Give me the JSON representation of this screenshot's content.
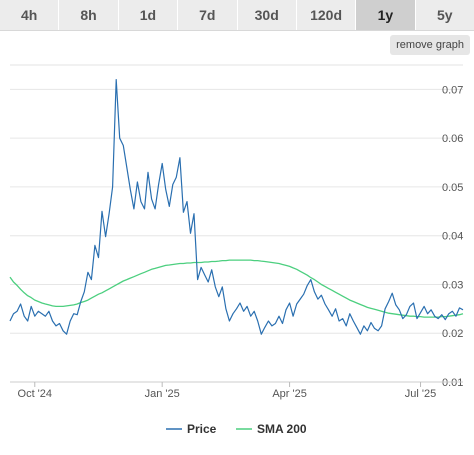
{
  "tabs": [
    {
      "label": "4h",
      "active": false
    },
    {
      "label": "8h",
      "active": false
    },
    {
      "label": "1d",
      "active": false
    },
    {
      "label": "7d",
      "active": false
    },
    {
      "label": "30d",
      "active": false
    },
    {
      "label": "120d",
      "active": false
    },
    {
      "label": "1y",
      "active": true
    },
    {
      "label": "5y",
      "active": false
    }
  ],
  "remove_graph_label": "remove graph",
  "chart_data": {
    "type": "line",
    "x_ticks": [
      "Oct '24",
      "Jan '25",
      "Apr '25",
      "Jul '25"
    ],
    "x_tick_index": [
      7,
      43,
      79,
      116
    ],
    "y_ticks": [
      "0.01",
      "0.02",
      "0.03",
      "0.04",
      "0.05",
      "0.06",
      "0.07"
    ],
    "ylim": [
      0.01,
      0.075
    ],
    "grid": true,
    "legend_position": "bottom",
    "colors": {
      "price": "#2a6fb0",
      "sma": "#4ccf7f"
    },
    "series": [
      {
        "name": "Price",
        "values": [
          0.0225,
          0.024,
          0.0245,
          0.026,
          0.0235,
          0.0225,
          0.0255,
          0.0235,
          0.0245,
          0.024,
          0.0235,
          0.0245,
          0.0225,
          0.0215,
          0.022,
          0.0205,
          0.0198,
          0.0225,
          0.024,
          0.0238,
          0.0265,
          0.0285,
          0.0325,
          0.031,
          0.038,
          0.0355,
          0.045,
          0.0398,
          0.0445,
          0.05,
          0.072,
          0.06,
          0.0585,
          0.054,
          0.0495,
          0.0455,
          0.051,
          0.047,
          0.0455,
          0.053,
          0.0475,
          0.0455,
          0.0505,
          0.0548,
          0.0495,
          0.046,
          0.0505,
          0.052,
          0.056,
          0.0448,
          0.047,
          0.0405,
          0.0445,
          0.031,
          0.0335,
          0.032,
          0.0305,
          0.033,
          0.0295,
          0.0275,
          0.0295,
          0.025,
          0.0225,
          0.024,
          0.025,
          0.0262,
          0.0245,
          0.0255,
          0.0235,
          0.0245,
          0.0225,
          0.0198,
          0.0212,
          0.0225,
          0.0215,
          0.022,
          0.0235,
          0.022,
          0.0248,
          0.0262,
          0.0235,
          0.026,
          0.027,
          0.028,
          0.0298,
          0.031,
          0.0285,
          0.027,
          0.0278,
          0.026,
          0.0248,
          0.0235,
          0.025,
          0.0225,
          0.023,
          0.0215,
          0.024,
          0.0225,
          0.0212,
          0.0198,
          0.0215,
          0.0205,
          0.0222,
          0.021,
          0.0205,
          0.0215,
          0.025,
          0.0265,
          0.0282,
          0.0258,
          0.0248,
          0.023,
          0.0238,
          0.0255,
          0.0262,
          0.023,
          0.0242,
          0.0255,
          0.024,
          0.0248,
          0.0235,
          0.023,
          0.0238,
          0.0228,
          0.024,
          0.0245,
          0.0235,
          0.0252,
          0.0248
        ]
      },
      {
        "name": "SMA 200",
        "values": [
          0.0315,
          0.0305,
          0.0298,
          0.029,
          0.0283,
          0.0277,
          0.0273,
          0.0268,
          0.0265,
          0.0262,
          0.026,
          0.0258,
          0.0256,
          0.0255,
          0.0255,
          0.0255,
          0.0256,
          0.0257,
          0.0258,
          0.026,
          0.0263,
          0.0265,
          0.0268,
          0.0272,
          0.0276,
          0.028,
          0.0283,
          0.0287,
          0.0291,
          0.0295,
          0.0299,
          0.0303,
          0.0307,
          0.031,
          0.0313,
          0.0316,
          0.0319,
          0.0322,
          0.0325,
          0.0328,
          0.0331,
          0.0333,
          0.0335,
          0.0337,
          0.0339,
          0.034,
          0.0341,
          0.0342,
          0.0343,
          0.0343,
          0.0344,
          0.0344,
          0.0345,
          0.0345,
          0.0345,
          0.0346,
          0.0346,
          0.0347,
          0.0347,
          0.0348,
          0.0349,
          0.0349,
          0.035,
          0.035,
          0.035,
          0.035,
          0.035,
          0.035,
          0.035,
          0.0349,
          0.0349,
          0.0348,
          0.0347,
          0.0346,
          0.0345,
          0.0344,
          0.0343,
          0.0341,
          0.0339,
          0.0337,
          0.0334,
          0.0331,
          0.0327,
          0.0323,
          0.0319,
          0.0314,
          0.031,
          0.0305,
          0.03,
          0.0296,
          0.0292,
          0.0288,
          0.0284,
          0.028,
          0.0276,
          0.0272,
          0.0268,
          0.0265,
          0.0262,
          0.0259,
          0.0256,
          0.0253,
          0.0251,
          0.0249,
          0.0247,
          0.0245,
          0.0243,
          0.0241,
          0.024,
          0.0239,
          0.0238,
          0.0237,
          0.0236,
          0.0235,
          0.0235,
          0.0234,
          0.0234,
          0.0233,
          0.0233,
          0.0233,
          0.0233,
          0.0233,
          0.0234,
          0.0234,
          0.0235,
          0.0236,
          0.0237,
          0.0238,
          0.024
        ]
      }
    ]
  }
}
